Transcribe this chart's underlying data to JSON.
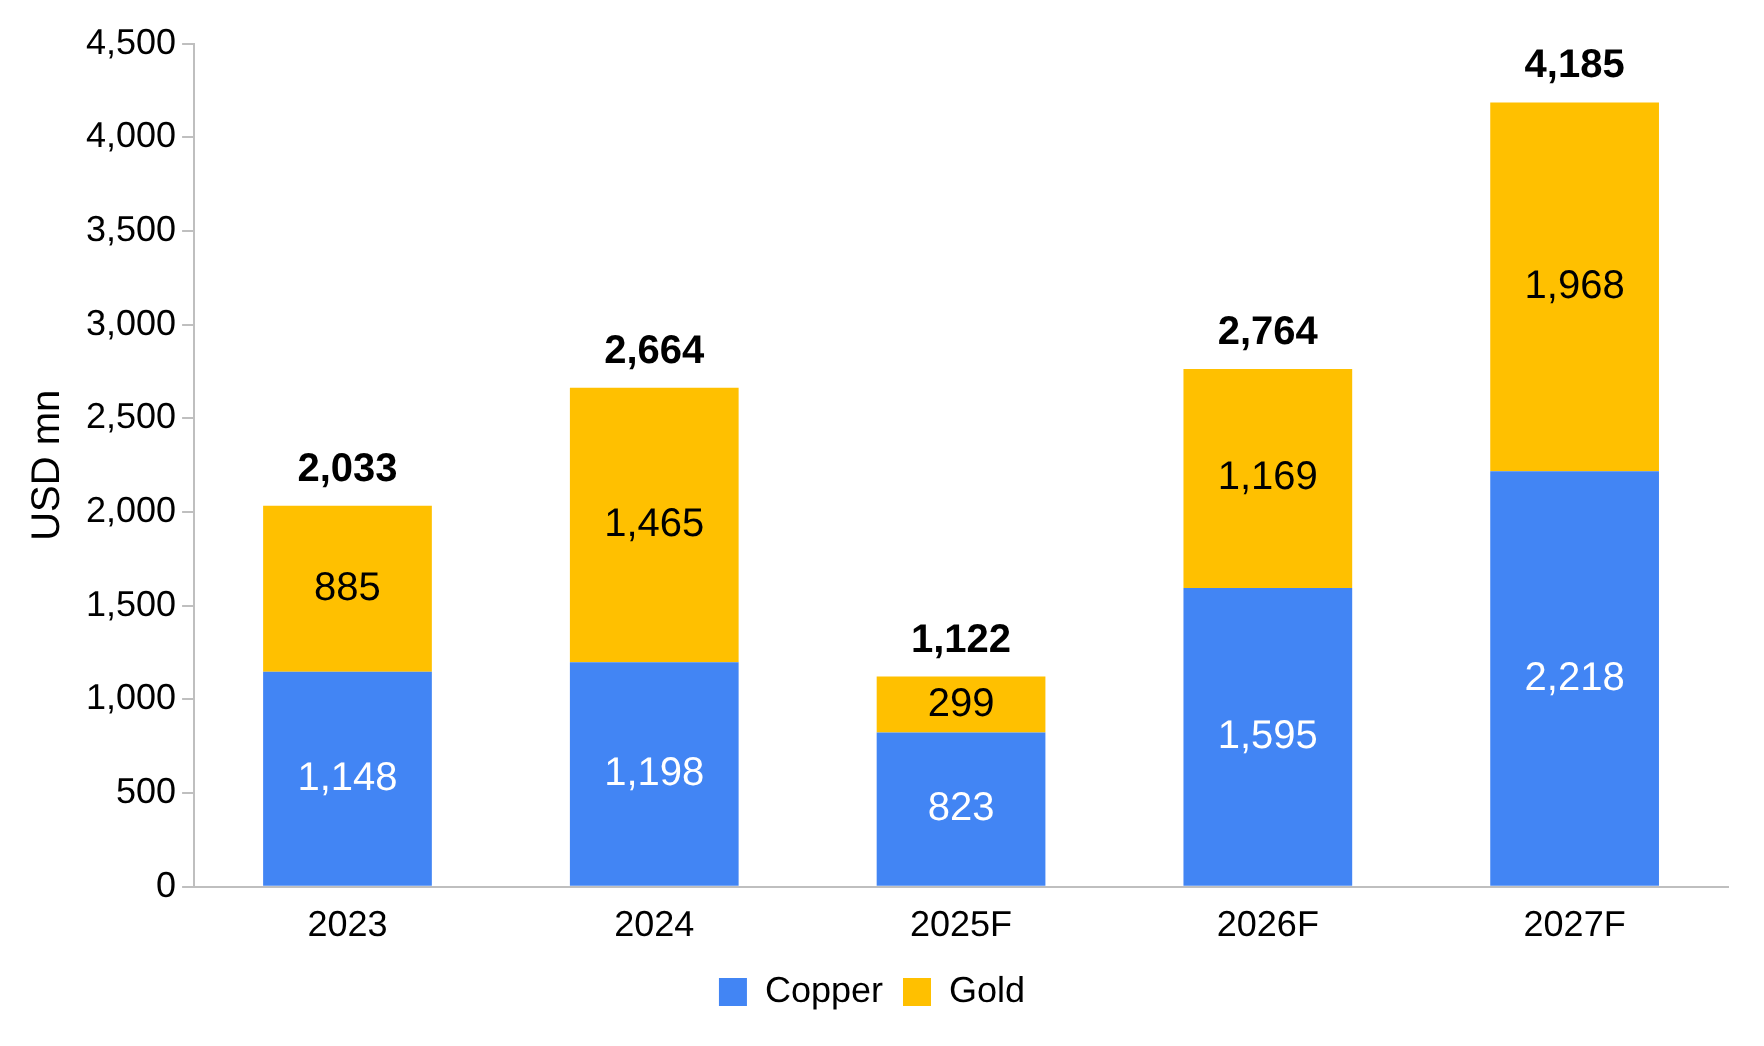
{
  "chart_data": {
    "type": "bar",
    "stacked": true,
    "ylabel": "USD mn",
    "categories": [
      "2023",
      "2024",
      "2025F",
      "2026F",
      "2027F"
    ],
    "series": [
      {
        "name": "Copper",
        "color": "#4285f4",
        "values": [
          1148,
          1198,
          823,
          1595,
          2218
        ],
        "value_labels": [
          "1,148",
          "1,198",
          "823",
          "1,595",
          "2,218"
        ]
      },
      {
        "name": "Gold",
        "color": "#ffc000",
        "values": [
          885,
          1465,
          299,
          1169,
          1968
        ],
        "value_labels": [
          "885",
          "1,465",
          "299",
          "1,169",
          "1,968"
        ]
      }
    ],
    "ylim": [
      0,
      4500
    ],
    "yticks": [
      0,
      500,
      {
        "value": 1000,
        "label": "1,000"
      },
      {
        "value": 1500,
        "label": "1,500"
      },
      {
        "value": 2000,
        "label": "2,000"
      },
      {
        "value": 2500,
        "label": "2,500"
      },
      {
        "value": 3000,
        "label": "3,000"
      },
      {
        "value": 3500,
        "label": "3,500"
      },
      {
        "value": 4000,
        "label": "4,000"
      },
      {
        "value": 4500,
        "label": "4,500"
      }
    ],
    "totals": [
      "2,033",
      "2,664",
      "1,122",
      "2,764",
      "4,185"
    ],
    "grid": false,
    "legend": "bottom"
  }
}
